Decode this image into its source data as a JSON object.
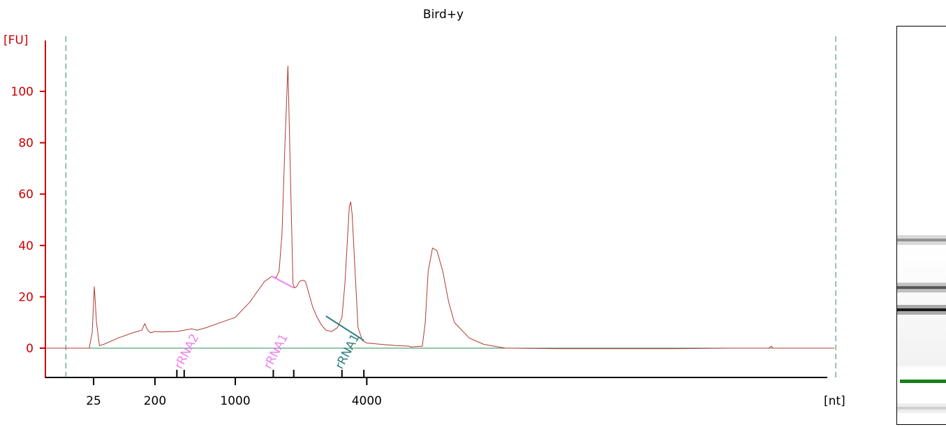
{
  "chart_data": {
    "type": "line",
    "title": "Bird+y",
    "ylabel": "[FU]",
    "xlabel": "[nt]",
    "ylim": [
      -11,
      118
    ],
    "y_ticks": [
      0,
      20,
      40,
      60,
      80,
      100
    ],
    "x_ticks": [
      "25",
      "200",
      "1000",
      "4000"
    ],
    "x_range_seconds": [
      17,
      71
    ],
    "x_tick_seconds": [
      20.3,
      24.5,
      30.0,
      39.0
    ],
    "ladder_marks_seconds": [
      26.0,
      26.5,
      32.6,
      34.0,
      37.3,
      38.8
    ],
    "grid": false,
    "legend": "none",
    "colors": {
      "axis_y": "#cc0000",
      "trace": "#b03a2e",
      "baseline": "#2e8b57",
      "window_line": "#2e8b57",
      "marker_rrna2": "#ee82ee",
      "marker_rrna1": "#ee82ee",
      "marker_rrna1_dark": "#2f7f7f"
    },
    "window_seconds": [
      18.4,
      71.1
    ],
    "series": [
      {
        "x": [
          17.0,
          20.0,
          20.2,
          20.35,
          20.5,
          20.7,
          21.0,
          22.0,
          23.0,
          23.6,
          23.8,
          24.0,
          24.2,
          24.5,
          25.0,
          26.0,
          26.8,
          27.0,
          27.4,
          28.0,
          29.0,
          30.0,
          31.0,
          31.5,
          32.0,
          32.5,
          32.8,
          33.0,
          33.2,
          33.4,
          33.6,
          33.8,
          33.95,
          34.05,
          34.2,
          34.4,
          34.6,
          34.8,
          35.0,
          35.3,
          35.6,
          35.9,
          36.2,
          36.6,
          37.0,
          37.3,
          37.5,
          37.7,
          37.8,
          37.9,
          38.0,
          38.2,
          38.4,
          38.7,
          39.0,
          40.0,
          41.0,
          41.9,
          42.0,
          42.8,
          43.0,
          43.2,
          43.5,
          43.8,
          44.2,
          44.6,
          45.0,
          46.0,
          47.0,
          48.0,
          48.5,
          49.0,
          52.0,
          55.0,
          60.0,
          64.0,
          66.5,
          66.7,
          66.8,
          68.0,
          71.0
        ],
        "y": [
          0,
          0,
          6,
          24,
          10,
          1,
          1.5,
          4,
          6,
          7,
          9.5,
          7,
          6,
          6.5,
          6.3,
          6.5,
          7.3,
          7.5,
          7,
          8,
          10,
          12,
          18,
          22,
          26,
          28,
          27.5,
          30,
          45,
          80,
          110,
          60,
          25,
          23.5,
          24,
          26,
          26.5,
          26,
          22,
          16,
          12,
          9,
          7,
          6.5,
          8,
          12,
          25,
          45,
          55,
          57,
          52,
          30,
          8,
          3,
          2,
          1.5,
          1,
          0.8,
          0.5,
          0.8,
          10,
          30,
          39,
          38,
          30,
          18,
          10,
          4,
          1.5,
          0.5,
          0,
          0,
          -0.2,
          -0.2,
          -0.2,
          0,
          0,
          0.8,
          0,
          0,
          0
        ]
      }
    ],
    "peak_markers": [
      {
        "label": "rRNA2",
        "x": 26.3
      },
      {
        "label": "rRNA1",
        "x": 32.4
      },
      {
        "label": "rRNA1",
        "x": 37.3
      }
    ],
    "gel_bands_seconds": [
      {
        "x": 32.0,
        "intensity": 0.45
      },
      {
        "x": 35.0,
        "intensity": 0.7
      },
      {
        "x": 36.4,
        "intensity": 0.95
      },
      {
        "x": 42.6,
        "intensity": 0.2
      }
    ]
  }
}
